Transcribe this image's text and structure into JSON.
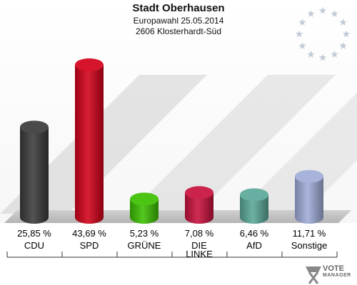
{
  "header": {
    "title": "Stadt Oberhausen",
    "subtitle": "Europawahl 25.05.2014",
    "district": "2606 Klosterhardt-Süd"
  },
  "logo": {
    "line1": "VOTE",
    "line2": "MANAGER"
  },
  "chart_data": {
    "type": "bar",
    "title": "Stadt Oberhausen",
    "subtitle": "Europawahl 25.05.2014 — 2606 Klosterhardt-Süd",
    "categories": [
      "CDU",
      "SPD",
      "GRÜNE",
      "DIE LINKE",
      "AfD",
      "Sonstige"
    ],
    "category_lines": [
      [
        "CDU"
      ],
      [
        "SPD"
      ],
      [
        "GRÜNE"
      ],
      [
        "DIE",
        "LINKE"
      ],
      [
        "AfD"
      ],
      [
        "Sonstige"
      ]
    ],
    "values": [
      25.85,
      43.69,
      5.23,
      7.08,
      6.46,
      11.71
    ],
    "value_labels": [
      "25,85 %",
      "43,69 %",
      "5,23 %",
      "7,08 %",
      "6,46 %",
      "11,71 %"
    ],
    "colors": [
      "#3a3a3a",
      "#d20019",
      "#3cbf00",
      "#c8103c",
      "#5aa898",
      "#a0acd8"
    ],
    "unit": "%",
    "ylim": [
      0,
      50
    ],
    "grid": false,
    "legend": "none"
  }
}
